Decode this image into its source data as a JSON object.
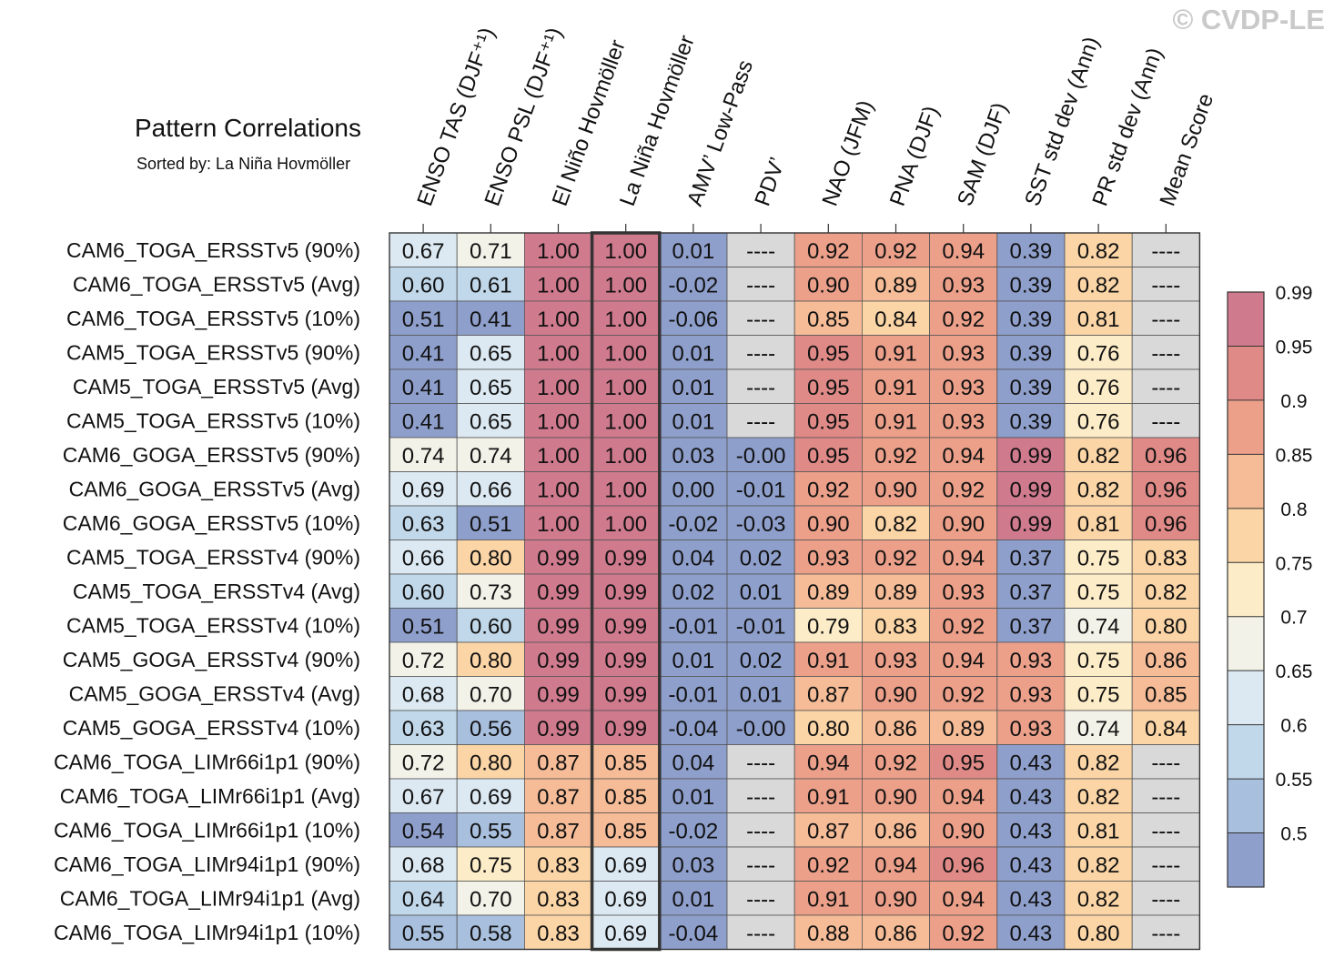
{
  "watermark": "© CVDP-LE",
  "chart_data": {
    "type": "heatmap",
    "title": "Pattern Correlations",
    "subtitle": "Sorted by: La Niña Hovmöller",
    "highlight_column": 3,
    "columns": [
      "ENSO TAS (DJF⁺¹)",
      "ENSO PSL (DJF⁺¹)",
      "El Niño Hovmöller",
      "La Niña Hovmöller",
      "AMV’ Low-Pass",
      "PDV’",
      "NAO (JFM)",
      "PNA (DJF)",
      "SAM (DJF)",
      "SST std dev (Ann)",
      "PR std dev (Ann)",
      "Mean Score"
    ],
    "rows": [
      "CAM6_TOGA_ERSSTv5 (90%)",
      "CAM6_TOGA_ERSSTv5 (Avg)",
      "CAM6_TOGA_ERSSTv5 (10%)",
      "CAM5_TOGA_ERSSTv5 (90%)",
      "CAM5_TOGA_ERSSTv5 (Avg)",
      "CAM5_TOGA_ERSSTv5 (10%)",
      "CAM6_GOGA_ERSSTv5 (90%)",
      "CAM6_GOGA_ERSSTv5 (Avg)",
      "CAM6_GOGA_ERSSTv5 (10%)",
      "CAM5_TOGA_ERSSTv4 (90%)",
      "CAM5_TOGA_ERSSTv4 (Avg)",
      "CAM5_TOGA_ERSSTv4 (10%)",
      "CAM5_GOGA_ERSSTv4 (90%)",
      "CAM5_GOGA_ERSSTv4 (Avg)",
      "CAM5_GOGA_ERSSTv4 (10%)",
      "CAM6_TOGA_LIMr66i1p1 (90%)",
      "CAM6_TOGA_LIMr66i1p1 (Avg)",
      "CAM6_TOGA_LIMr66i1p1 (10%)",
      "CAM6_TOGA_LIMr94i1p1 (90%)",
      "CAM6_TOGA_LIMr94i1p1 (Avg)",
      "CAM6_TOGA_LIMr94i1p1 (10%)"
    ],
    "values": [
      [
        "0.67",
        "0.71",
        "1.00",
        "1.00",
        "0.01",
        "----",
        "0.92",
        "0.92",
        "0.94",
        "0.39",
        "0.82",
        "----"
      ],
      [
        "0.60",
        "0.61",
        "1.00",
        "1.00",
        "-0.02",
        "----",
        "0.90",
        "0.89",
        "0.93",
        "0.39",
        "0.82",
        "----"
      ],
      [
        "0.51",
        "0.41",
        "1.00",
        "1.00",
        "-0.06",
        "----",
        "0.85",
        "0.84",
        "0.92",
        "0.39",
        "0.81",
        "----"
      ],
      [
        "0.41",
        "0.65",
        "1.00",
        "1.00",
        "0.01",
        "----",
        "0.95",
        "0.91",
        "0.93",
        "0.39",
        "0.76",
        "----"
      ],
      [
        "0.41",
        "0.65",
        "1.00",
        "1.00",
        "0.01",
        "----",
        "0.95",
        "0.91",
        "0.93",
        "0.39",
        "0.76",
        "----"
      ],
      [
        "0.41",
        "0.65",
        "1.00",
        "1.00",
        "0.01",
        "----",
        "0.95",
        "0.91",
        "0.93",
        "0.39",
        "0.76",
        "----"
      ],
      [
        "0.74",
        "0.74",
        "1.00",
        "1.00",
        "0.03",
        "-0.00",
        "0.95",
        "0.92",
        "0.94",
        "0.99",
        "0.82",
        "0.96"
      ],
      [
        "0.69",
        "0.66",
        "1.00",
        "1.00",
        "0.00",
        "-0.01",
        "0.92",
        "0.90",
        "0.92",
        "0.99",
        "0.82",
        "0.96"
      ],
      [
        "0.63",
        "0.51",
        "1.00",
        "1.00",
        "-0.02",
        "-0.03",
        "0.90",
        "0.82",
        "0.90",
        "0.99",
        "0.81",
        "0.96"
      ],
      [
        "0.66",
        "0.80",
        "0.99",
        "0.99",
        "0.04",
        "0.02",
        "0.93",
        "0.92",
        "0.94",
        "0.37",
        "0.75",
        "0.83"
      ],
      [
        "0.60",
        "0.73",
        "0.99",
        "0.99",
        "0.02",
        "0.01",
        "0.89",
        "0.89",
        "0.93",
        "0.37",
        "0.75",
        "0.82"
      ],
      [
        "0.51",
        "0.60",
        "0.99",
        "0.99",
        "-0.01",
        "-0.01",
        "0.79",
        "0.83",
        "0.92",
        "0.37",
        "0.74",
        "0.80"
      ],
      [
        "0.72",
        "0.80",
        "0.99",
        "0.99",
        "0.01",
        "0.02",
        "0.91",
        "0.93",
        "0.94",
        "0.93",
        "0.75",
        "0.86"
      ],
      [
        "0.68",
        "0.70",
        "0.99",
        "0.99",
        "-0.01",
        "0.01",
        "0.87",
        "0.90",
        "0.92",
        "0.93",
        "0.75",
        "0.85"
      ],
      [
        "0.63",
        "0.56",
        "0.99",
        "0.99",
        "-0.04",
        "-0.00",
        "0.80",
        "0.86",
        "0.89",
        "0.93",
        "0.74",
        "0.84"
      ],
      [
        "0.72",
        "0.80",
        "0.87",
        "0.85",
        "0.04",
        "----",
        "0.94",
        "0.92",
        "0.95",
        "0.43",
        "0.82",
        "----"
      ],
      [
        "0.67",
        "0.69",
        "0.87",
        "0.85",
        "0.01",
        "----",
        "0.91",
        "0.90",
        "0.94",
        "0.43",
        "0.82",
        "----"
      ],
      [
        "0.54",
        "0.55",
        "0.87",
        "0.85",
        "-0.02",
        "----",
        "0.87",
        "0.86",
        "0.90",
        "0.43",
        "0.81",
        "----"
      ],
      [
        "0.68",
        "0.75",
        "0.83",
        "0.69",
        "0.03",
        "----",
        "0.92",
        "0.94",
        "0.96",
        "0.43",
        "0.82",
        "----"
      ],
      [
        "0.64",
        "0.70",
        "0.83",
        "0.69",
        "0.01",
        "----",
        "0.91",
        "0.90",
        "0.94",
        "0.43",
        "0.82",
        "----"
      ],
      [
        "0.55",
        "0.58",
        "0.83",
        "0.69",
        "-0.04",
        "----",
        "0.88",
        "0.86",
        "0.92",
        "0.43",
        "0.80",
        "----"
      ]
    ],
    "missing_color": "#d9d9d9",
    "colorbar": {
      "levels": [
        "0.5",
        "0.55",
        "0.6",
        "0.65",
        "0.7",
        "0.75",
        "0.8",
        "0.85",
        "0.9",
        "0.95",
        "0.99"
      ],
      "thresholds": [
        0.5,
        0.55,
        0.6,
        0.65,
        0.7,
        0.75,
        0.8,
        0.85,
        0.9,
        0.95,
        0.99
      ],
      "colors": [
        "#8e9fcc",
        "#a8bfde",
        "#c1d8ea",
        "#dce9f2",
        "#f2f2e8",
        "#fdecc8",
        "#fbd5a6",
        "#f6bc97",
        "#eca08a",
        "#e08a87",
        "#d07a8e"
      ]
    }
  }
}
